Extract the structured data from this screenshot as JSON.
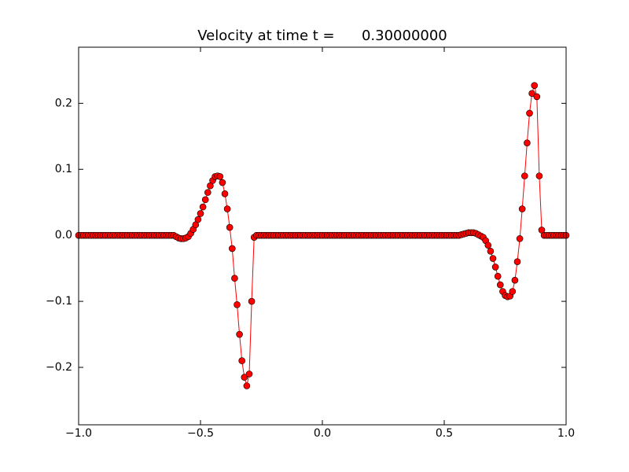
{
  "chart_data": {
    "type": "line",
    "title": "Velocity at time t =      0.30000000",
    "x": [
      -1.0,
      -0.99,
      -0.98,
      -0.97,
      -0.96,
      -0.95,
      -0.94,
      -0.93,
      -0.92,
      -0.91,
      -0.9,
      -0.89,
      -0.88,
      -0.87,
      -0.86,
      -0.85,
      -0.84,
      -0.83,
      -0.82,
      -0.81,
      -0.8,
      -0.79,
      -0.78,
      -0.77,
      -0.76,
      -0.75,
      -0.74,
      -0.73,
      -0.72,
      -0.71,
      -0.7,
      -0.69,
      -0.68,
      -0.67,
      -0.66,
      -0.65,
      -0.64,
      -0.63,
      -0.62,
      -0.61,
      -0.6,
      -0.59,
      -0.58,
      -0.57,
      -0.56,
      -0.55,
      -0.54,
      -0.53,
      -0.52,
      -0.51,
      -0.5,
      -0.49,
      -0.48,
      -0.47,
      -0.46,
      -0.45,
      -0.44,
      -0.43,
      -0.42,
      -0.41,
      -0.4,
      -0.39,
      -0.38,
      -0.37,
      -0.36,
      -0.35,
      -0.34,
      -0.33,
      -0.32,
      -0.31,
      -0.3,
      -0.29,
      -0.28,
      -0.27,
      -0.26,
      -0.25,
      -0.24,
      -0.23,
      -0.22,
      -0.21,
      -0.2,
      -0.19,
      -0.18,
      -0.17,
      -0.16,
      -0.15,
      -0.14,
      -0.13,
      -0.12,
      -0.11,
      -0.1,
      -0.09,
      -0.08,
      -0.07,
      -0.06,
      -0.05,
      -0.04,
      -0.03,
      -0.02,
      -0.01,
      0.0,
      0.01,
      0.02,
      0.03,
      0.04,
      0.05,
      0.06,
      0.07,
      0.08,
      0.09,
      0.1,
      0.11,
      0.12,
      0.13,
      0.14,
      0.15,
      0.16,
      0.17,
      0.18,
      0.19,
      0.2,
      0.21,
      0.22,
      0.23,
      0.24,
      0.25,
      0.26,
      0.27,
      0.28,
      0.29,
      0.3,
      0.31,
      0.32,
      0.33,
      0.34,
      0.35,
      0.36,
      0.37,
      0.38,
      0.39,
      0.4,
      0.41,
      0.42,
      0.43,
      0.44,
      0.45,
      0.46,
      0.47,
      0.48,
      0.49,
      0.5,
      0.51,
      0.52,
      0.53,
      0.54,
      0.55,
      0.56,
      0.57,
      0.58,
      0.59,
      0.6,
      0.61,
      0.62,
      0.63,
      0.64,
      0.65,
      0.66,
      0.67,
      0.68,
      0.69,
      0.7,
      0.71,
      0.72,
      0.73,
      0.74,
      0.75,
      0.76,
      0.77,
      0.78,
      0.79,
      0.8,
      0.81,
      0.82,
      0.83,
      0.84,
      0.85,
      0.86,
      0.87,
      0.88,
      0.89,
      0.9,
      0.91,
      0.92,
      0.93,
      0.94,
      0.95,
      0.96,
      0.97,
      0.98,
      0.99,
      1.0
    ],
    "series": [
      {
        "color": "#ff0000",
        "values": [
          0,
          0,
          0,
          0,
          0,
          0,
          0,
          0,
          0,
          0,
          0,
          0,
          0,
          0,
          0,
          0,
          0,
          0,
          0,
          0,
          0,
          0,
          0,
          0,
          0,
          0,
          0,
          0,
          0,
          0,
          0,
          0,
          0,
          0,
          0,
          0,
          0,
          0,
          0,
          0,
          -0.002,
          -0.004,
          -0.005,
          -0.005,
          -0.004,
          -0.002,
          0.003,
          0.009,
          0.016,
          0.024,
          0.033,
          0.043,
          0.054,
          0.065,
          0.075,
          0.083,
          0.089,
          0.09,
          0.089,
          0.08,
          0.063,
          0.04,
          0.012,
          -0.02,
          -0.065,
          -0.105,
          -0.15,
          -0.19,
          -0.215,
          -0.228,
          -0.21,
          -0.1,
          -0.003,
          0,
          0,
          0,
          0,
          0,
          0,
          0,
          0,
          0,
          0,
          0,
          0,
          0,
          0,
          0,
          0,
          0,
          0,
          0,
          0,
          0,
          0,
          0,
          0,
          0,
          0,
          0,
          0,
          0,
          0,
          0,
          0,
          0,
          0,
          0,
          0,
          0,
          0,
          0,
          0,
          0,
          0,
          0,
          0,
          0,
          0,
          0,
          0,
          0,
          0,
          0,
          0,
          0,
          0,
          0,
          0,
          0,
          0,
          0,
          0,
          0,
          0,
          0,
          0,
          0,
          0,
          0,
          0,
          0,
          0,
          0,
          0,
          0,
          0,
          0,
          0,
          0,
          0,
          0,
          0,
          0,
          0,
          0,
          0,
          0.001,
          0.002,
          0.003,
          0.004,
          0.004,
          0.004,
          0.003,
          0.001,
          -0.001,
          -0.003,
          -0.008,
          -0.015,
          -0.024,
          -0.035,
          -0.048,
          -0.062,
          -0.075,
          -0.085,
          -0.091,
          -0.093,
          -0.092,
          -0.085,
          -0.068,
          -0.04,
          -0.005,
          0.04,
          0.09,
          0.14,
          0.185,
          0.215,
          0.227,
          0.21,
          0.09,
          0.008,
          0,
          0,
          0,
          0,
          0,
          0,
          0,
          0,
          0,
          0
        ]
      }
    ],
    "marker_edge_color": "#000000",
    "xlim": [
      -1.0,
      1.0
    ],
    "xticks": [
      {
        "value": -1.0,
        "label": "−1.0"
      },
      {
        "value": -0.5,
        "label": "−0.5"
      },
      {
        "value": 0.0,
        "label": "0.0"
      },
      0.5,
      {
        "value": 1.0,
        "label": "1.0"
      }
    ],
    "ylim": [
      -0.287,
      0.285
    ],
    "yticks": [
      {
        "value": -0.2,
        "label": "−0.2"
      },
      {
        "value": -0.1,
        "label": "−0.1"
      },
      {
        "value": 0.0,
        "label": "0.0"
      },
      0.1,
      0.2
    ]
  }
}
